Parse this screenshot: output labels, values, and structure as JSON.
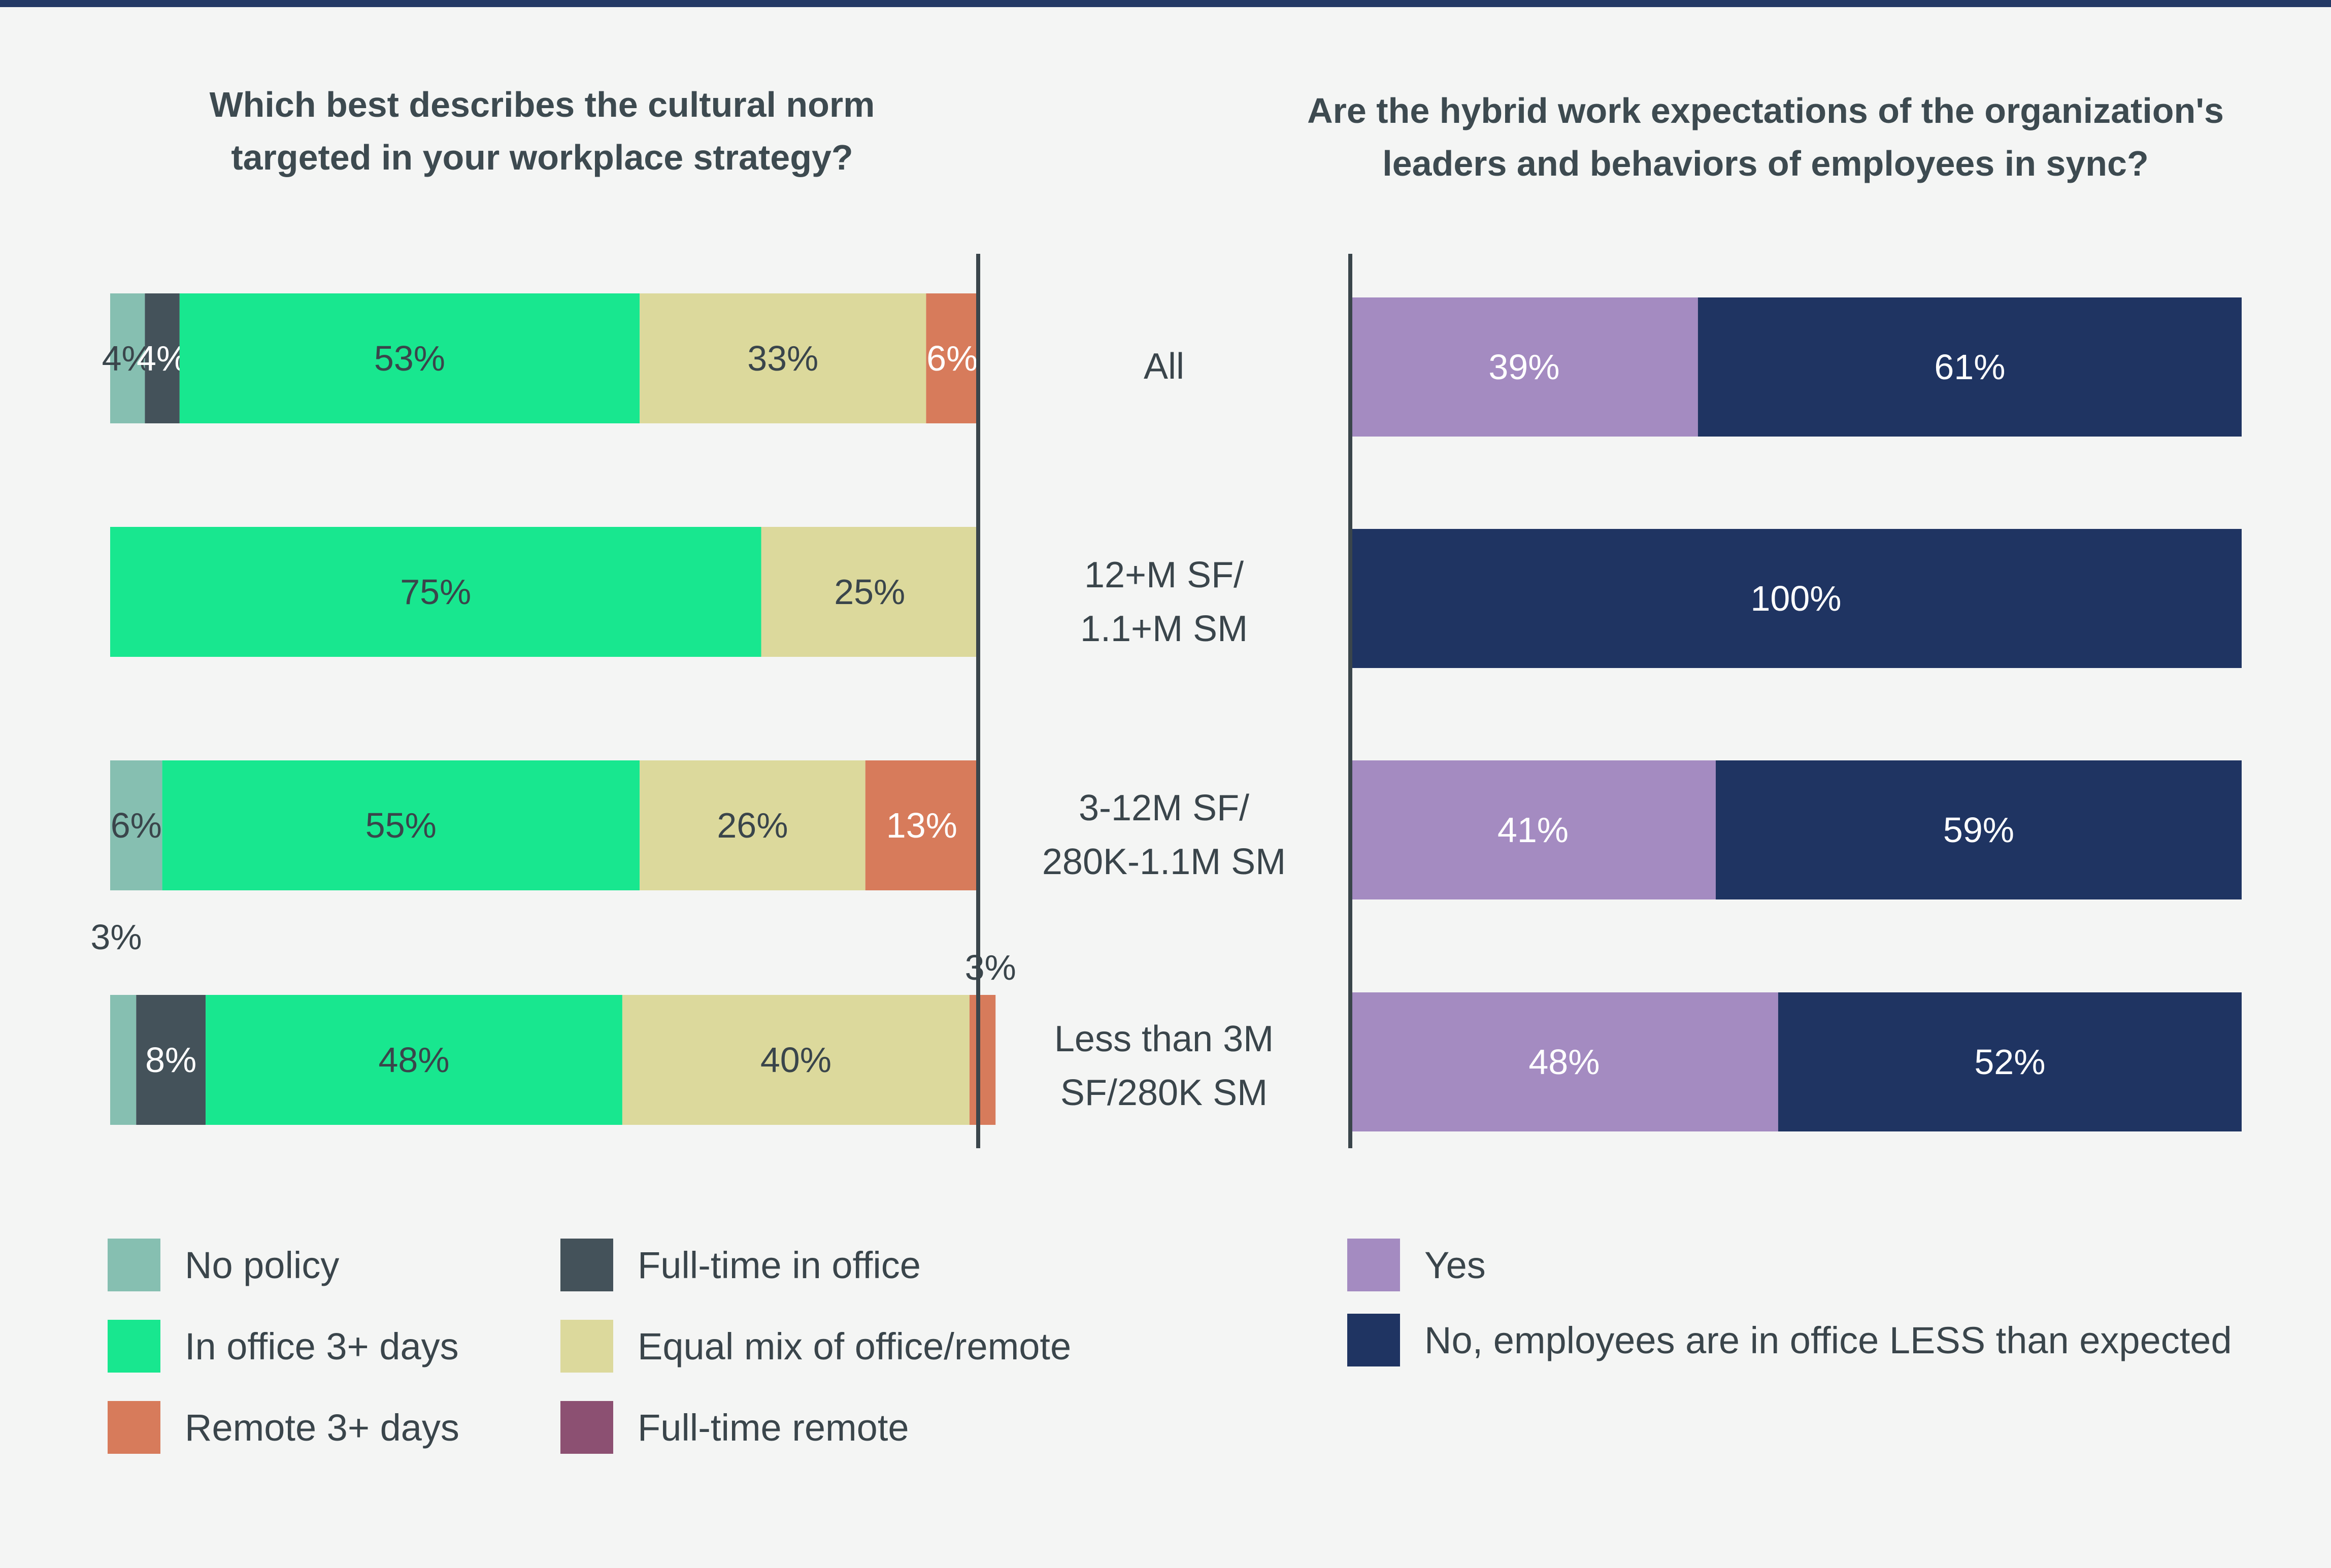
{
  "chart_data": [
    {
      "type": "bar",
      "orientation": "horizontal",
      "stacked": true,
      "title_lines": [
        "Which best describes the cultural norm",
        "targeted in your workplace strategy?"
      ],
      "categories": [
        "All",
        "12+M SF/ 1.1+M SM",
        "3-12M SF/ 280K-1.1M SM",
        "Less than 3M SF/280K SM"
      ],
      "series": [
        {
          "name": "No policy",
          "color": "#86bfb1",
          "values": [
            4,
            0,
            6,
            3
          ]
        },
        {
          "name": "Full-time in office",
          "color": "#44525a",
          "values": [
            4,
            0,
            0,
            8
          ]
        },
        {
          "name": "In office 3+ days",
          "color": "#18e78f",
          "values": [
            53,
            75,
            55,
            48
          ]
        },
        {
          "name": "Equal mix of office/remote",
          "color": "#dcd99c",
          "values": [
            33,
            25,
            26,
            40
          ]
        },
        {
          "name": "Remote 3+ days",
          "color": "#d77b5b",
          "values": [
            6,
            0,
            13,
            3
          ]
        },
        {
          "name": "Full-time remote",
          "color": "#8c5072",
          "values": [
            0,
            0,
            0,
            0
          ]
        }
      ],
      "data_labels": [
        [
          "4%",
          "4%",
          "53%",
          "33%",
          "6%",
          ""
        ],
        [
          "",
          "",
          "75%",
          "25%",
          "",
          ""
        ],
        [
          "6%",
          "",
          "55%",
          "26%",
          "13%",
          ""
        ],
        [
          "3%",
          "8%",
          "48%",
          "40%",
          "3%",
          ""
        ]
      ],
      "legend": {
        "position": "bottom",
        "columns": [
          [
            "No policy",
            "In office 3+ days",
            "Remote 3+ days"
          ],
          [
            "Full-time in office",
            "Equal mix of office/remote",
            "Full-time remote"
          ]
        ]
      }
    },
    {
      "type": "bar",
      "orientation": "horizontal",
      "stacked": true,
      "title_lines": [
        "Are the hybrid work expectations of the organization's",
        "leaders and behaviors of employees in sync?"
      ],
      "categories": [
        "All",
        "12+M SF/ 1.1+M SM",
        "3-12M SF/ 280K-1.1M SM",
        "Less than 3M SF/280K SM"
      ],
      "category_label_lines": [
        [
          "All"
        ],
        [
          "12+M SF/",
          "1.1+M SM"
        ],
        [
          "3-12M SF/",
          "280K-1.1M SM"
        ],
        [
          "Less than 3M",
          "SF/280K SM"
        ]
      ],
      "series": [
        {
          "name": "Yes",
          "color": "#a48bc1",
          "values": [
            39,
            0,
            41,
            48
          ]
        },
        {
          "name": "No, employees are in office LESS than expected",
          "color": "#1f3462",
          "values": [
            61,
            100,
            59,
            52
          ]
        }
      ],
      "data_labels": [
        [
          "39%",
          "61%"
        ],
        [
          "",
          "100%"
        ],
        [
          "41%",
          "59%"
        ],
        [
          "48%",
          "52%"
        ]
      ],
      "legend": {
        "position": "bottom",
        "items": [
          "Yes",
          "No, employees are in office LESS than expected"
        ]
      }
    }
  ]
}
